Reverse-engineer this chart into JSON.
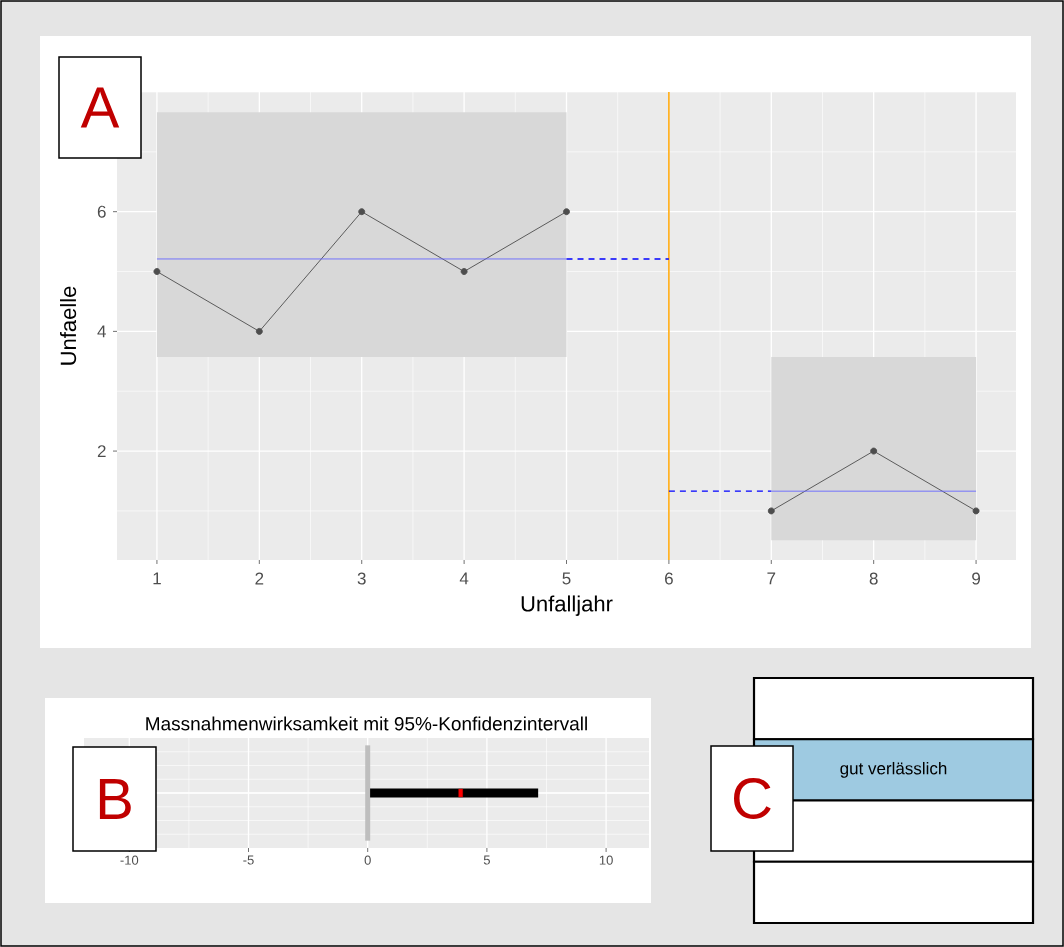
{
  "chart_data": [
    {
      "type": "line",
      "xlabel": "Unfalljahr",
      "ylabel": "Unfaelle",
      "annotations": [
        "A"
      ],
      "xlim": [
        0.61,
        9.39
      ],
      "ylim": [
        0.18,
        8.0
      ],
      "xticks": [
        1,
        2,
        3,
        4,
        5,
        6,
        7,
        8,
        9
      ],
      "yticks": [
        2,
        4,
        6
      ],
      "grid": true,
      "marker": "circle",
      "ref_lines": [
        {
          "axis": "x",
          "value": 6,
          "color": "#ffa500"
        }
      ],
      "series": [
        {
          "x": [
            1,
            2,
            3,
            4,
            5
          ],
          "values": [
            5,
            4,
            6,
            5,
            6
          ],
          "color": "#4d4d4d",
          "lower": [
            3.57,
            3.57,
            3.57,
            3.57,
            3.57
          ],
          "upper": [
            7.66,
            7.66,
            7.66,
            7.66,
            7.66
          ]
        },
        {
          "x": [
            7,
            8,
            9
          ],
          "values": [
            1,
            2,
            1
          ],
          "color": "#4d4d4d",
          "lower": [
            0.51,
            0.51,
            0.51
          ],
          "upper": [
            3.57,
            3.57,
            3.57
          ]
        },
        {
          "x": [
            1,
            5
          ],
          "values": [
            5.21,
            5.21
          ],
          "color": "#6666ff",
          "marker": "none",
          "line_style": "solid"
        },
        {
          "x": [
            5,
            6
          ],
          "values": [
            5.21,
            5.21
          ],
          "color": "#0000ff",
          "marker": "none",
          "line_style": "dashed"
        },
        {
          "x": [
            6,
            7
          ],
          "values": [
            1.33,
            1.33
          ],
          "color": "#0000ff",
          "marker": "none",
          "line_style": "dashed"
        },
        {
          "x": [
            7,
            9
          ],
          "values": [
            1.33,
            1.33
          ],
          "color": "#6666ff",
          "marker": "none",
          "line_style": "solid"
        }
      ]
    },
    {
      "type": "bar",
      "orientation": "horizontal",
      "title": "Massnahmenwirksamkeit mit 95%-Konfidenzintervall",
      "annotations": [
        "B"
      ],
      "categories": [
        null
      ],
      "xlim": [
        -11.9,
        11.8
      ],
      "xticks": [
        -10,
        -5,
        0,
        5,
        10
      ],
      "grid": true,
      "tick_labels": "x",
      "ref_lines": [
        {
          "axis": "x",
          "value": 0,
          "color": "#bebebe"
        }
      ],
      "series": [
        {
          "type": "bar",
          "color": "#000000",
          "base": [
            0.1
          ],
          "values": [
            7.05
          ]
        },
        {
          "type": "scatter",
          "color": "#ff0000",
          "marker": "square",
          "values": [
            3.9
          ]
        }
      ]
    },
    {
      "type": "other",
      "annotations": [
        "C"
      ],
      "categories": [
        null,
        "gut verlässlich",
        null,
        null
      ],
      "colors": [
        "#ffffff",
        "#9ecae1",
        "#ffffff",
        "#ffffff"
      ]
    }
  ]
}
